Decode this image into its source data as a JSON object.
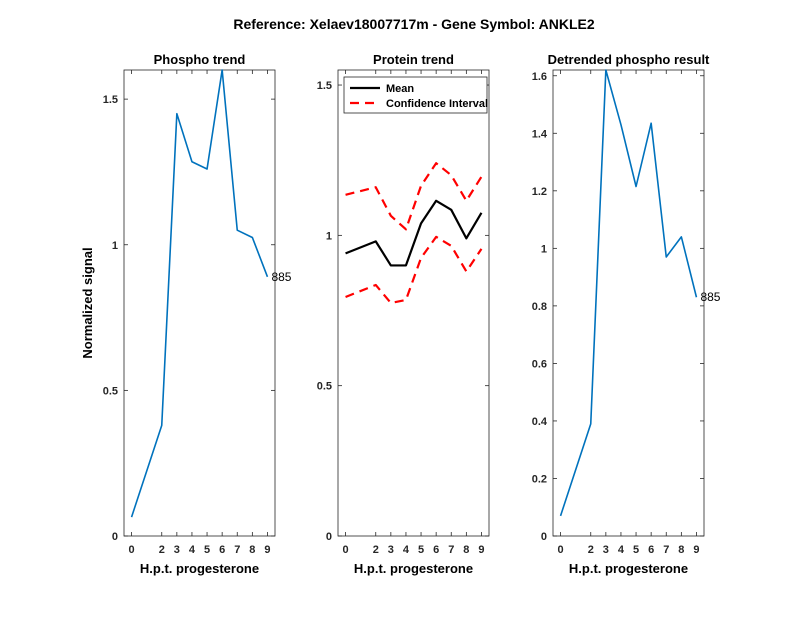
{
  "figure": {
    "title": "Reference:  Xelaev18007717m - Gene Symbol:  ANKLE2"
  },
  "colors": {
    "phospho_line": "#0072BD",
    "mean_line": "#000000",
    "ci_line": "#FF0000",
    "axis": "#262626"
  },
  "chart_data": [
    {
      "type": "line",
      "title": "Phospho trend",
      "xlabel": "H.p.t. progesterone",
      "ylabel": "Normalized signal",
      "x": [
        0,
        2,
        3,
        4,
        5,
        6,
        7,
        8,
        9
      ],
      "xlim": [
        -0.5,
        9.5
      ],
      "ylim": [
        0,
        1.6
      ],
      "xticks": [
        "0",
        "2",
        "3",
        "4",
        "5",
        "6",
        "7",
        "8",
        "9"
      ],
      "yticks": [
        {
          "value": 0,
          "label": "0"
        },
        {
          "value": 0.5,
          "label": "0.5"
        },
        {
          "value": 1,
          "label": "1"
        },
        {
          "value": 1.5,
          "label": "1.5"
        }
      ],
      "series": [
        {
          "values": [
            0.065,
            0.38,
            1.45,
            1.285,
            1.26,
            1.6,
            1.05,
            1.025,
            0.89
          ],
          "style": "solid",
          "color": "#0072BD"
        }
      ],
      "annotation": {
        "text": "885",
        "x": 9,
        "y": 0.89
      },
      "grid": false,
      "legend": null
    },
    {
      "type": "line",
      "title": "Protein trend",
      "xlabel": "H.p.t. progesterone",
      "ylabel": "",
      "x": [
        0,
        2,
        3,
        4,
        5,
        6,
        7,
        8,
        9
      ],
      "xlim": [
        -0.5,
        9.5
      ],
      "ylim": [
        0,
        1.55
      ],
      "xticks": [
        "0",
        "2",
        "3",
        "4",
        "5",
        "6",
        "7",
        "8",
        "9"
      ],
      "yticks": [
        {
          "value": 0,
          "label": "0"
        },
        {
          "value": 0.5,
          "label": "0.5"
        },
        {
          "value": 1,
          "label": "1"
        },
        {
          "value": 1.5,
          "label": "1.5"
        }
      ],
      "series": [
        {
          "name": "Mean",
          "values": [
            0.94,
            0.98,
            0.9,
            0.9,
            1.04,
            1.115,
            1.085,
            0.99,
            1.075
          ],
          "style": "solid",
          "color": "#000000"
        },
        {
          "name": "Confidence Interval",
          "values": [
            1.135,
            1.16,
            1.065,
            1.02,
            1.165,
            1.24,
            1.2,
            1.115,
            1.195
          ],
          "style": "dashed",
          "color": "#FF0000"
        },
        {
          "name": "",
          "values": [
            0.795,
            0.835,
            0.775,
            0.785,
            0.925,
            0.995,
            0.965,
            0.88,
            0.955
          ],
          "style": "dashed",
          "color": "#FF0000"
        }
      ],
      "grid": false,
      "legend": {
        "placement": "top-left",
        "entries": [
          "Mean",
          "Confidence Interval"
        ]
      }
    },
    {
      "type": "line",
      "title": "Detrended phospho result",
      "xlabel": "H.p.t. progesterone",
      "ylabel": "",
      "x": [
        0,
        2,
        3,
        4,
        5,
        6,
        7,
        8,
        9
      ],
      "xlim": [
        -0.5,
        9.5
      ],
      "ylim": [
        0,
        1.62
      ],
      "xticks": [
        "0",
        "2",
        "3",
        "4",
        "5",
        "6",
        "7",
        "8",
        "9"
      ],
      "yticks": [
        {
          "value": 0,
          "label": "0"
        },
        {
          "value": 0.2,
          "label": "0.2"
        },
        {
          "value": 0.4,
          "label": "0.4"
        },
        {
          "value": 0.6,
          "label": "0.6"
        },
        {
          "value": 0.8,
          "label": "0.8"
        },
        {
          "value": 1,
          "label": "1"
        },
        {
          "value": 1.2,
          "label": "1.2"
        },
        {
          "value": 1.4,
          "label": "1.4"
        },
        {
          "value": 1.6,
          "label": "1.6"
        }
      ],
      "series": [
        {
          "values": [
            0.07,
            0.39,
            1.62,
            1.43,
            1.215,
            1.435,
            0.97,
            1.04,
            0.83
          ],
          "style": "solid",
          "color": "#0072BD"
        }
      ],
      "annotation": {
        "text": "885",
        "x": 9,
        "y": 0.83
      },
      "grid": false,
      "legend": null
    }
  ]
}
